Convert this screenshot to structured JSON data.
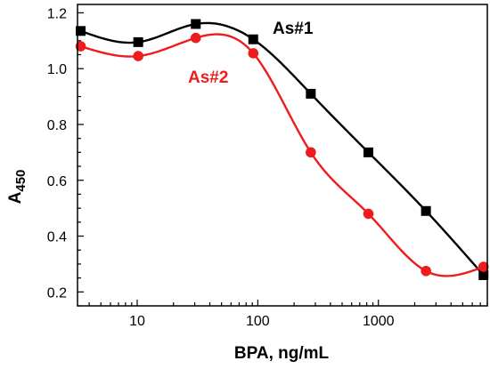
{
  "chart_data": {
    "type": "scatter",
    "title": "",
    "xlabel": "BPA, ng/mL",
    "ylabel_main": "A",
    "ylabel_sub": "450",
    "x_scale": "log",
    "xlim": [
      3.2,
      8000
    ],
    "ylim": [
      0.15,
      1.23
    ],
    "x_ticks": [
      10,
      100,
      1000
    ],
    "x_tick_labels": [
      "10",
      "100",
      "1000"
    ],
    "y_ticks": [
      0.2,
      0.4,
      0.6,
      0.8,
      1.0,
      1.2
    ],
    "y_tick_labels": [
      "0.2",
      "0.4",
      "0.6",
      "0.8",
      "1.0",
      "1.2"
    ],
    "grid": false,
    "series": [
      {
        "name": "As#1",
        "color": "#000000",
        "marker": "square",
        "x": [
          3.4,
          10.2,
          30.6,
          91.7,
          275,
          826,
          2480,
          7440
        ],
        "y": [
          1.135,
          1.095,
          1.16,
          1.105,
          0.91,
          0.7,
          0.49,
          0.26
        ]
      },
      {
        "name": "As#2",
        "color": "#ee1c1c",
        "marker": "circle",
        "x": [
          3.4,
          10.2,
          30.6,
          91.7,
          275,
          826,
          2480,
          7440
        ],
        "y": [
          1.08,
          1.045,
          1.11,
          1.055,
          0.7,
          0.48,
          0.275,
          0.29
        ]
      }
    ]
  }
}
